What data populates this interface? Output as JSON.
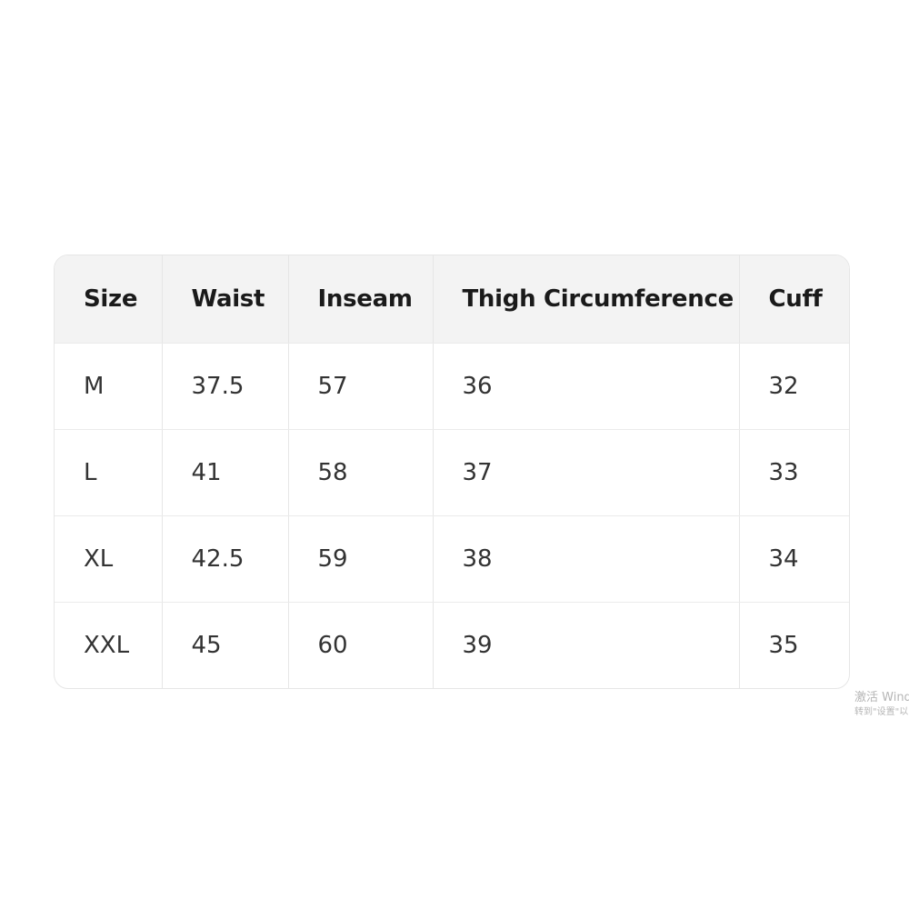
{
  "table": {
    "headers": [
      "Size",
      "Waist",
      "Inseam",
      "Thigh Circumference",
      "Cuff"
    ],
    "rows": [
      [
        "M",
        "37.5",
        "57",
        "36",
        "32"
      ],
      [
        "L",
        "41",
        "58",
        "37",
        "33"
      ],
      [
        "XL",
        "42.5",
        "59",
        "38",
        "34"
      ],
      [
        "XXL",
        "45",
        "60",
        "39",
        "35"
      ]
    ]
  },
  "watermark": {
    "line1": "激活 Wind",
    "line2": "转到\"设置\"以"
  }
}
